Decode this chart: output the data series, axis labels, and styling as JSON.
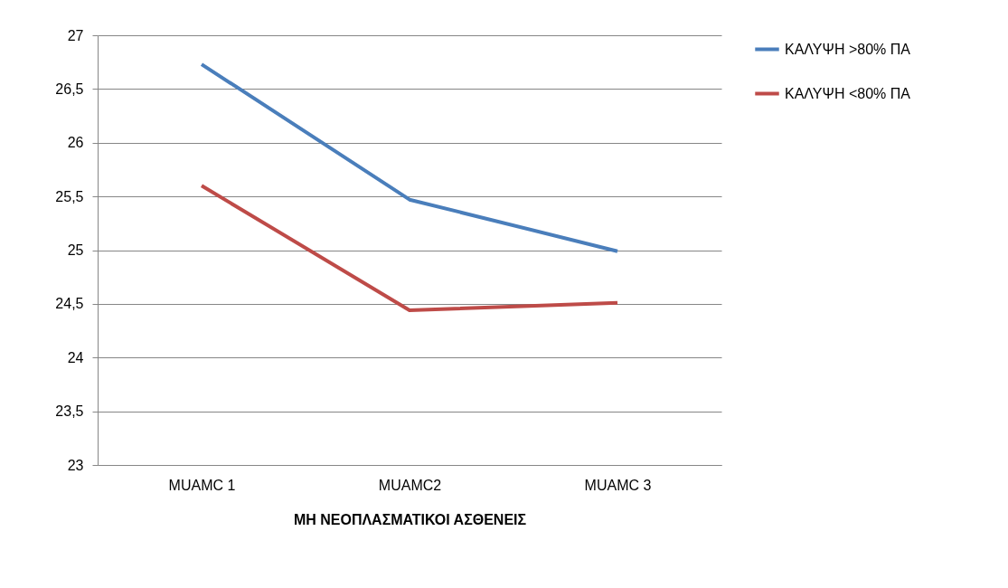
{
  "chart_data": {
    "type": "line",
    "xlabel": "ΜΗ ΝΕΟΠΛΑΣΜΑΤΙΚΟΙ ΑΣΘΕΝΕΙΣ",
    "categories": [
      "MUAMC 1",
      "MUAMC2",
      "MUAMC 3"
    ],
    "series": [
      {
        "name": "ΚΑΛΥΨΗ >80% ΠΑ",
        "color": "#4a7ebb",
        "values": [
          26.73,
          25.47,
          24.99
        ]
      },
      {
        "name": "ΚΑΛΥΨΗ <80% ΠΑ",
        "color": "#be4b48",
        "values": [
          25.6,
          24.44,
          24.51
        ]
      }
    ],
    "ylim": [
      23,
      27
    ],
    "yticks": [
      23,
      {
        "value": 23.5,
        "label": "23,5"
      },
      24,
      {
        "value": 24.5,
        "label": "24,5"
      },
      25,
      {
        "value": 25.5,
        "label": "25,5"
      },
      26,
      {
        "value": 26.5,
        "label": "26,5"
      },
      27
    ],
    "grid": "y",
    "legend": "right",
    "marker": "none"
  }
}
